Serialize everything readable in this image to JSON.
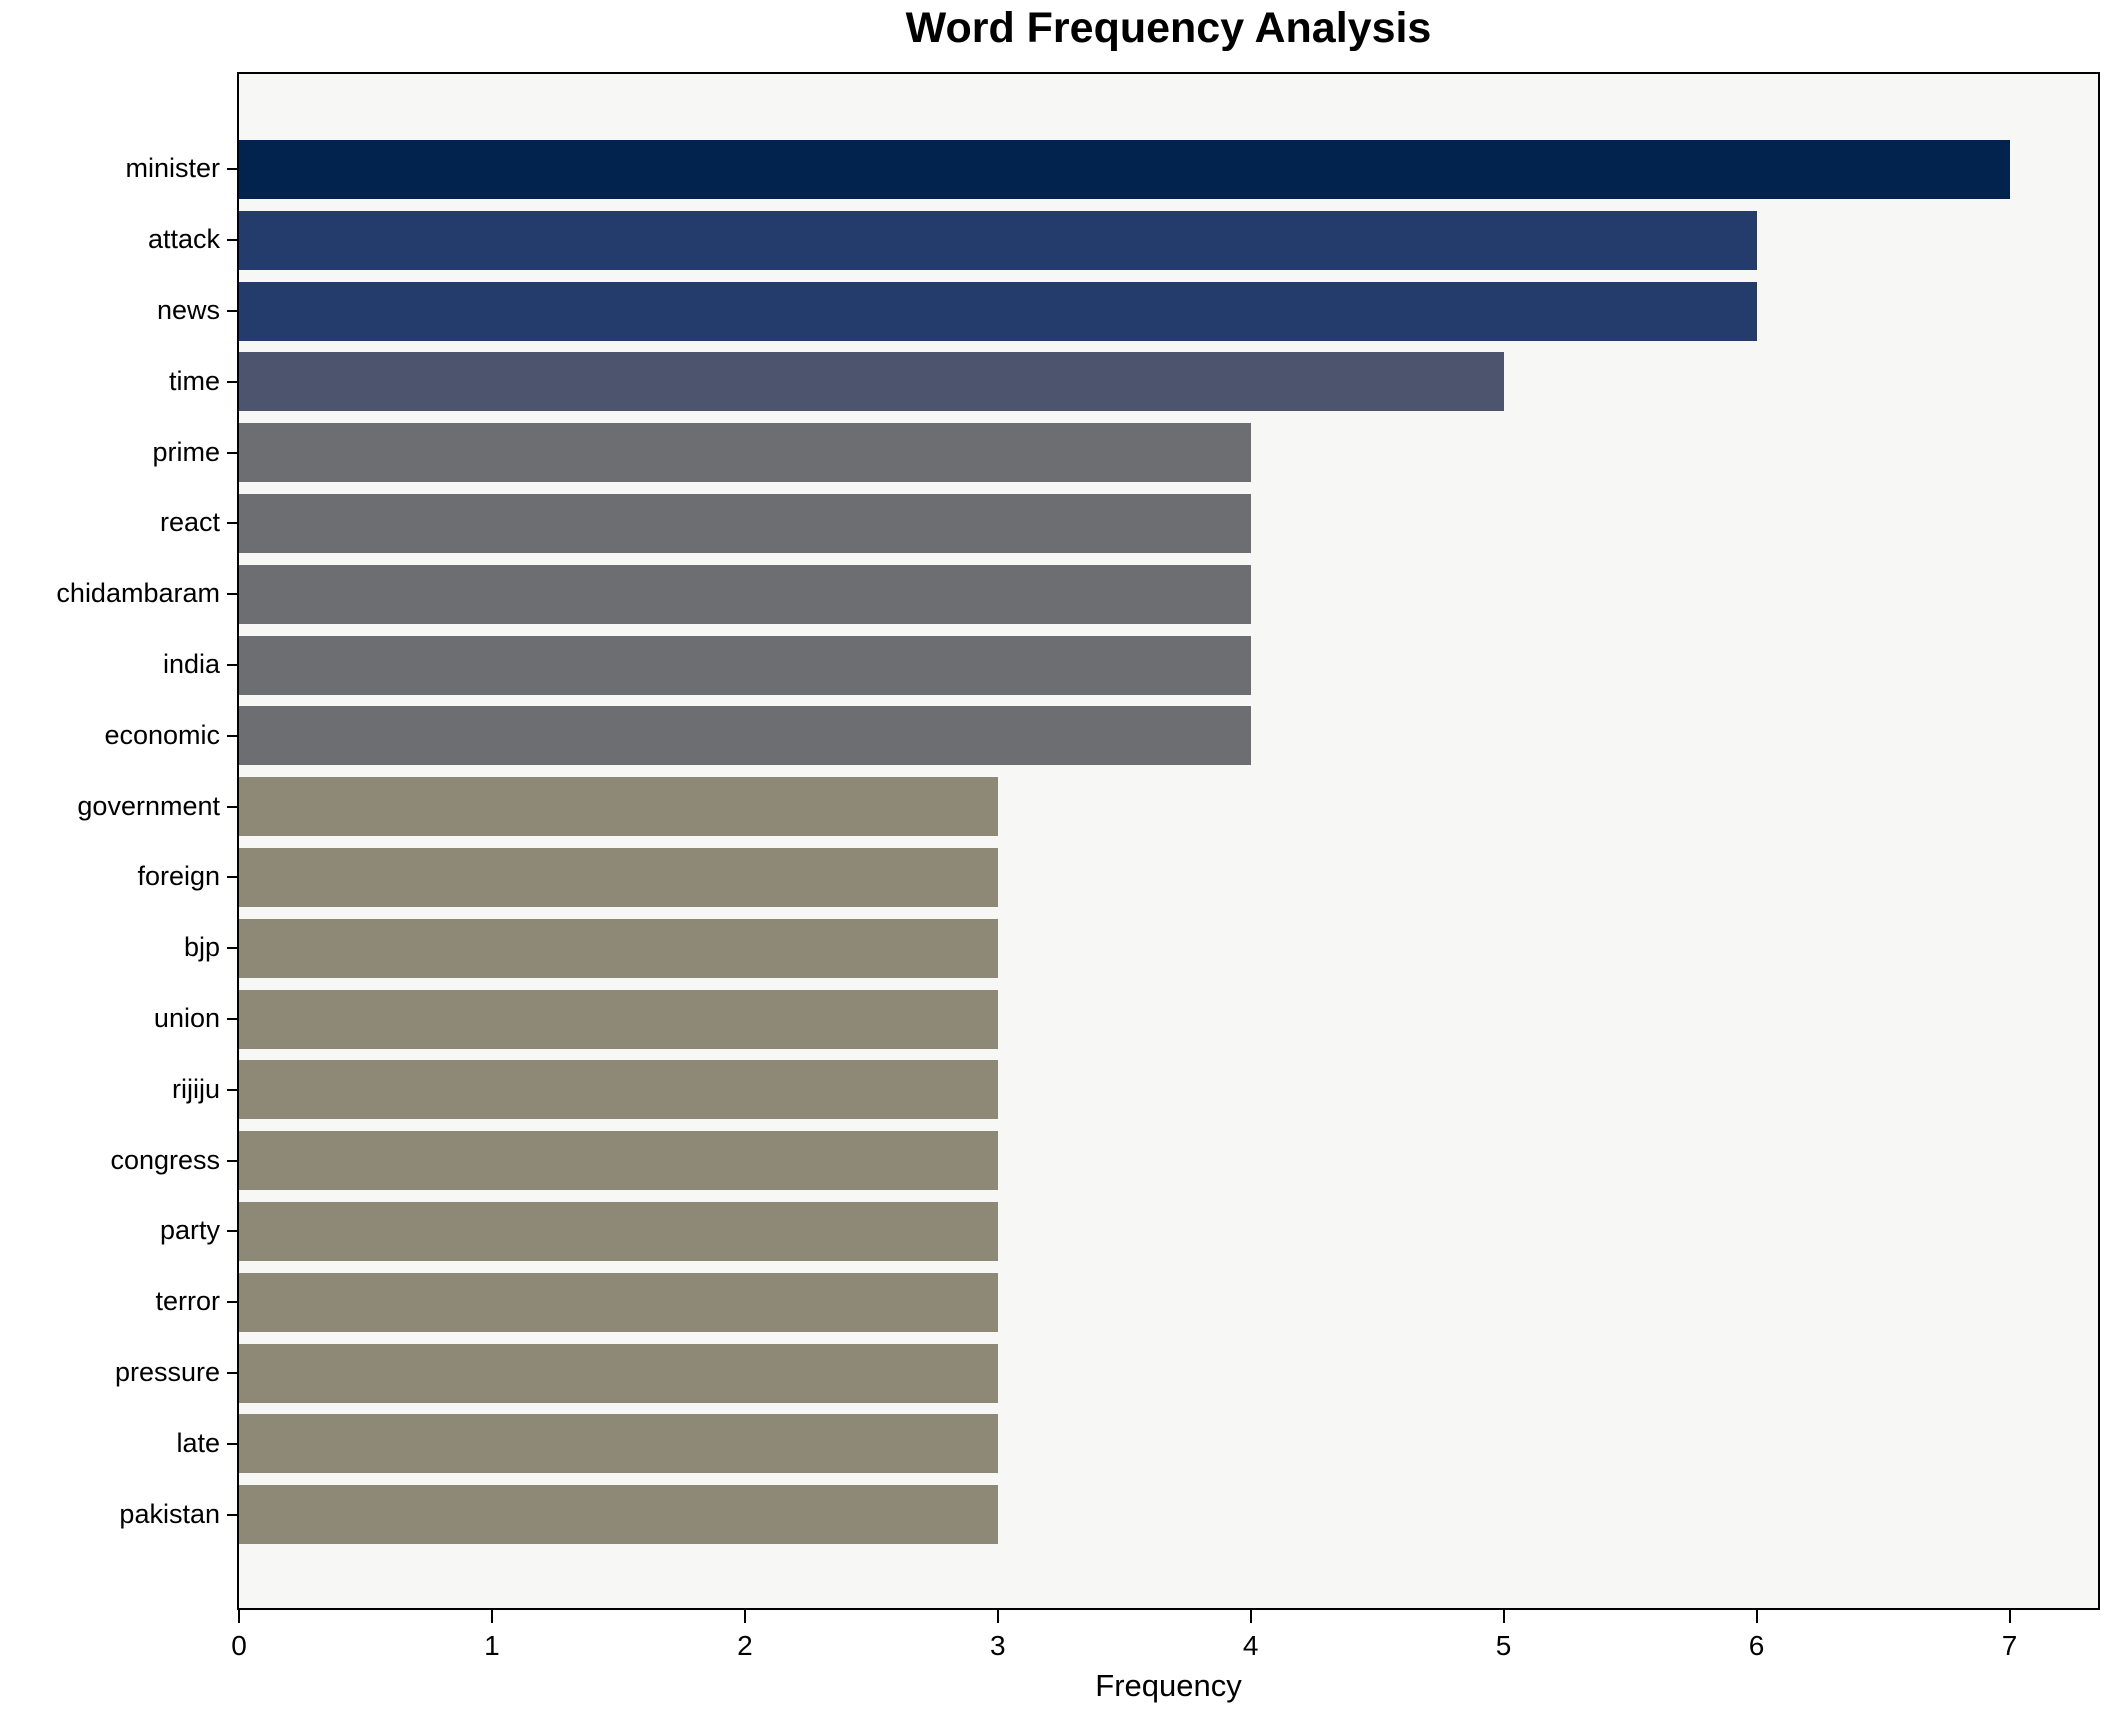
{
  "chart_data": {
    "type": "bar",
    "orientation": "horizontal",
    "title": "Word Frequency Analysis",
    "xlabel": "Frequency",
    "ylabel": "",
    "categories": [
      "minister",
      "attack",
      "news",
      "time",
      "prime",
      "react",
      "chidambaram",
      "india",
      "economic",
      "government",
      "foreign",
      "bjp",
      "union",
      "rijiju",
      "congress",
      "party",
      "terror",
      "pressure",
      "late",
      "pakistan"
    ],
    "values": [
      7,
      6,
      6,
      5,
      4,
      4,
      4,
      4,
      4,
      3,
      3,
      3,
      3,
      3,
      3,
      3,
      3,
      3,
      3,
      3
    ],
    "bar_colors": [
      "#02234e",
      "#243c6b",
      "#243c6b",
      "#4d556e",
      "#6c6e71",
      "#6c6e71",
      "#6c6e71",
      "#6c6e71",
      "#6c6e71",
      "#8e8877",
      "#8e8877",
      "#8e8877",
      "#8e8877",
      "#8e8877",
      "#8e8877",
      "#8e8877",
      "#8e8877",
      "#8e8877",
      "#8e8877",
      "#8e8877"
    ],
    "xlim": [
      0,
      7.35
    ],
    "x_ticks": [
      0,
      1,
      2,
      3,
      4,
      5,
      6,
      7
    ],
    "grid": false,
    "legend": "none",
    "plot_background": "#f7f7f5",
    "figure_background": "#ffffff",
    "spine_color": "#000000",
    "text_color": "#000000"
  }
}
